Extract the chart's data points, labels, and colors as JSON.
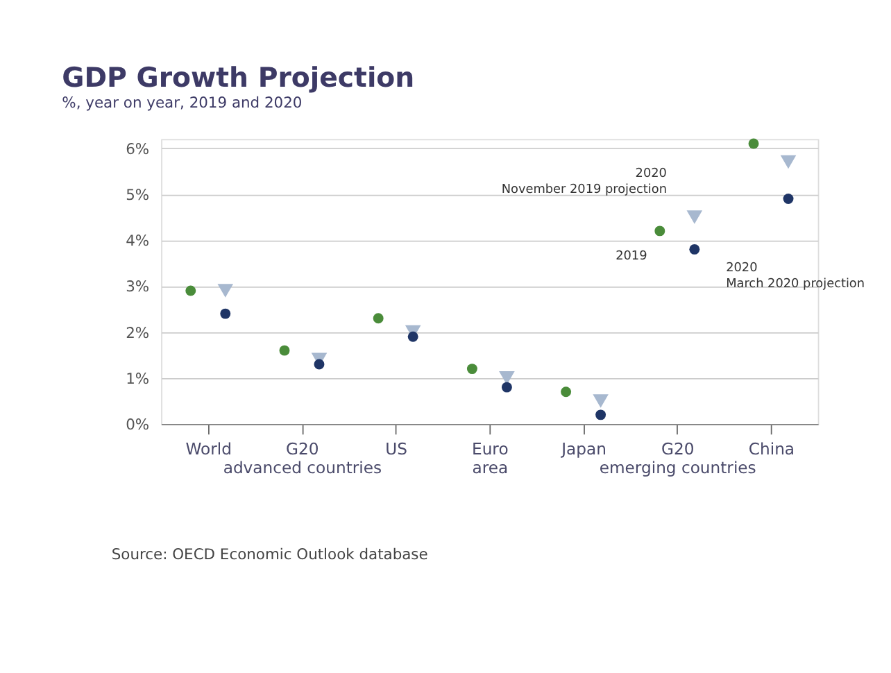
{
  "chart_data": {
    "type": "scatter",
    "title": "GDP Growth Projection",
    "subtitle": "%, year on year,  2019 and 2020",
    "categories": [
      "World",
      "G20\nadvanced countries",
      "US",
      "Euro\narea",
      "Japan",
      "G20\nemerging countries",
      "China"
    ],
    "series": [
      {
        "color": "#4a8c3a",
        "marker": "circle",
        "values": [
          2.9,
          1.6,
          2.3,
          1.2,
          0.7,
          4.2,
          6.1
        ]
      },
      {
        "color": "#a7b8cf",
        "marker": "triangle",
        "values": [
          2.9,
          1.4,
          2.0,
          1.0,
          0.5,
          4.5,
          5.7
        ]
      },
      {
        "color": "#1f3566",
        "marker": "circle",
        "values": [
          2.4,
          1.3,
          1.9,
          0.8,
          0.2,
          3.8,
          4.9
        ]
      }
    ],
    "ylim": [
      0,
      6.2
    ],
    "yticks": [
      {
        "value": 0,
        "label": "0%"
      },
      {
        "value": 1,
        "label": "1%"
      },
      {
        "value": 2,
        "label": "2%"
      },
      {
        "value": 3,
        "label": "3%"
      },
      {
        "value": 4,
        "label": "4%"
      },
      {
        "value": 5,
        "label": "5%"
      },
      {
        "value": 6,
        "label": "6%"
      }
    ],
    "grid": "y",
    "legend": false,
    "annotations": [
      "2020\nNovember 2019 projection",
      "2019",
      "2020\nMarch 2020 projection",
      "Source: OECD Economic Outlook database"
    ]
  }
}
